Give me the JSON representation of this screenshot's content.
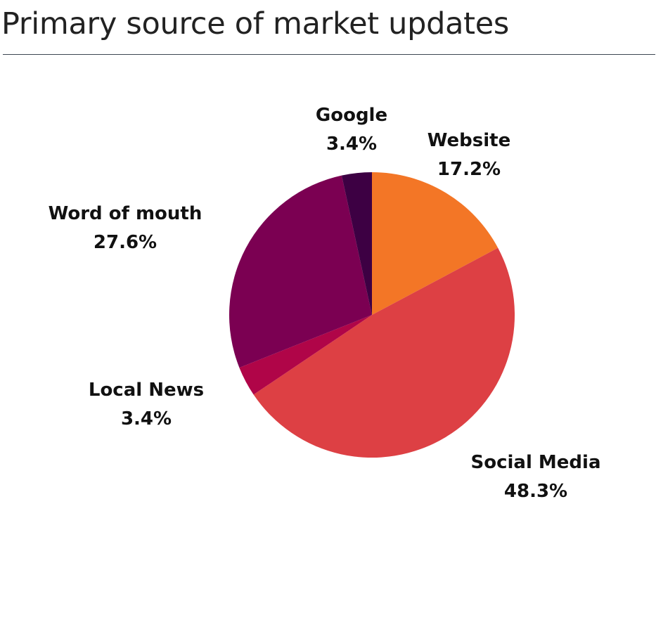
{
  "chart_data": {
    "type": "pie",
    "title": "Primary source of market updates",
    "slices": [
      {
        "label": "Website",
        "value": 17.2,
        "value_text": "17.2%",
        "color": "#f37626"
      },
      {
        "label": "Social Media",
        "value": 48.3,
        "value_text": "48.3%",
        "color": "#dd4044"
      },
      {
        "label": "Local News",
        "value": 3.4,
        "value_text": "3.4%",
        "color": "#b00548"
      },
      {
        "label": "Word of mouth",
        "value": 27.6,
        "value_text": "27.6%",
        "color": "#7b0052"
      },
      {
        "label": "Google",
        "value": 3.4,
        "value_text": "3.4%",
        "color": "#3d0043"
      }
    ],
    "start_angle": "12 o'clock",
    "direction": "clockwise",
    "legend": "none",
    "labels": "outside"
  }
}
